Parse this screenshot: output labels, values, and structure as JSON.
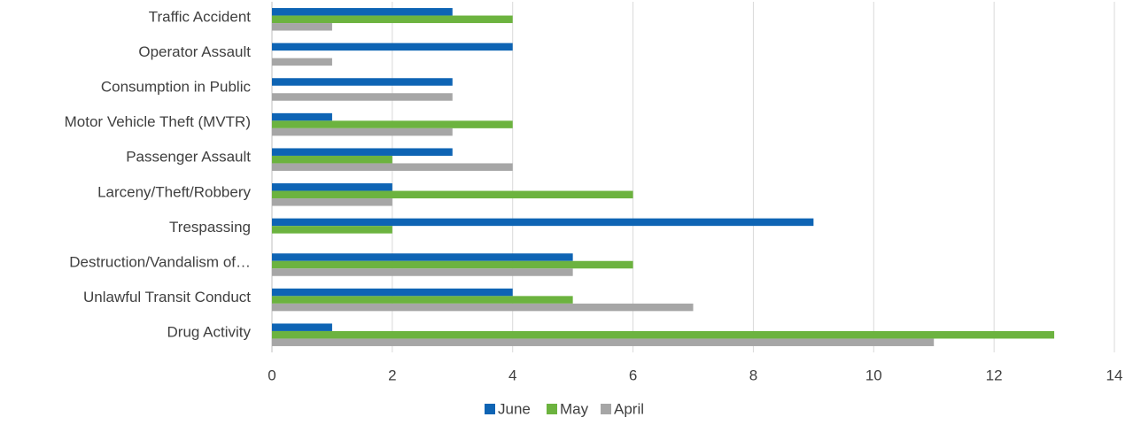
{
  "chart_data": {
    "type": "bar",
    "orientation": "horizontal",
    "categories": [
      "Traffic Accident",
      "Operator Assault",
      "Consumption in Public",
      "Motor Vehicle Theft (MVTR)",
      "Passenger Assault",
      "Larceny/Theft/Robbery",
      "Trespassing",
      "Destruction/Vandalism of…",
      "Unlawful Transit Conduct",
      "Drug Activity"
    ],
    "series": [
      {
        "name": "June",
        "color": "#0e64b4",
        "values": [
          3,
          4,
          3,
          1,
          3,
          2,
          9,
          5,
          4,
          1
        ]
      },
      {
        "name": "May",
        "color": "#6cb33f",
        "values": [
          4,
          0,
          0,
          4,
          2,
          6,
          2,
          6,
          5,
          13
        ]
      },
      {
        "name": "April",
        "color": "#a6a6a6",
        "values": [
          1,
          1,
          3,
          3,
          4,
          2,
          0,
          5,
          7,
          11
        ]
      }
    ],
    "xlim": [
      0,
      14
    ],
    "xticks": [
      0,
      2,
      4,
      6,
      8,
      10,
      12,
      14
    ],
    "grid": true,
    "legend": "bottom"
  }
}
